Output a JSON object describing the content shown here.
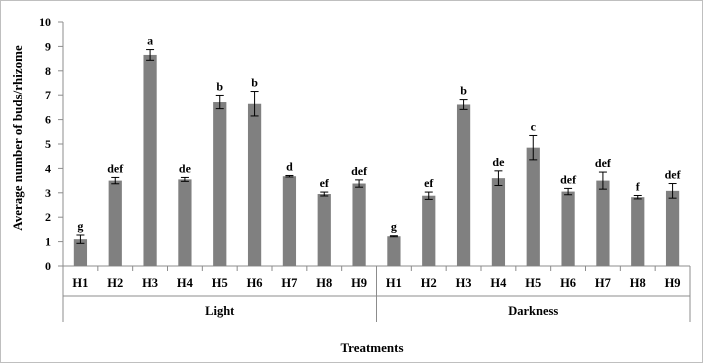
{
  "chart_data": {
    "type": "bar",
    "ylabel": "Average number of buds/rhizome",
    "xlabel": "Treatments",
    "ylim": [
      0,
      10
    ],
    "yticks": [
      0,
      1,
      2,
      3,
      4,
      5,
      6,
      7,
      8,
      9,
      10
    ],
    "grid": false,
    "bar_color": "#808080",
    "groups": [
      {
        "name": "Light",
        "categories": [
          "H1",
          "H2",
          "H3",
          "H4",
          "H5",
          "H6",
          "H7",
          "H8",
          "H9"
        ],
        "values": [
          1.1,
          3.5,
          8.65,
          3.55,
          6.72,
          6.65,
          3.68,
          2.95,
          3.38
        ],
        "errors": [
          0.17,
          0.13,
          0.22,
          0.08,
          0.27,
          0.5,
          0.03,
          0.08,
          0.15
        ],
        "letters": [
          "g",
          "def",
          "a",
          "de",
          "b",
          "b",
          "d",
          "ef",
          "def"
        ]
      },
      {
        "name": "Darkness",
        "categories": [
          "H1",
          "H2",
          "H3",
          "H4",
          "H5",
          "H6",
          "H7",
          "H8",
          "H9"
        ],
        "values": [
          1.22,
          2.88,
          6.62,
          3.6,
          4.85,
          3.05,
          3.5,
          2.82,
          3.08
        ],
        "errors": [
          0.02,
          0.15,
          0.2,
          0.3,
          0.5,
          0.13,
          0.35,
          0.07,
          0.3
        ],
        "letters": [
          "g",
          "ef",
          "b",
          "de",
          "c",
          "def",
          "def",
          "f",
          "def"
        ]
      }
    ]
  }
}
